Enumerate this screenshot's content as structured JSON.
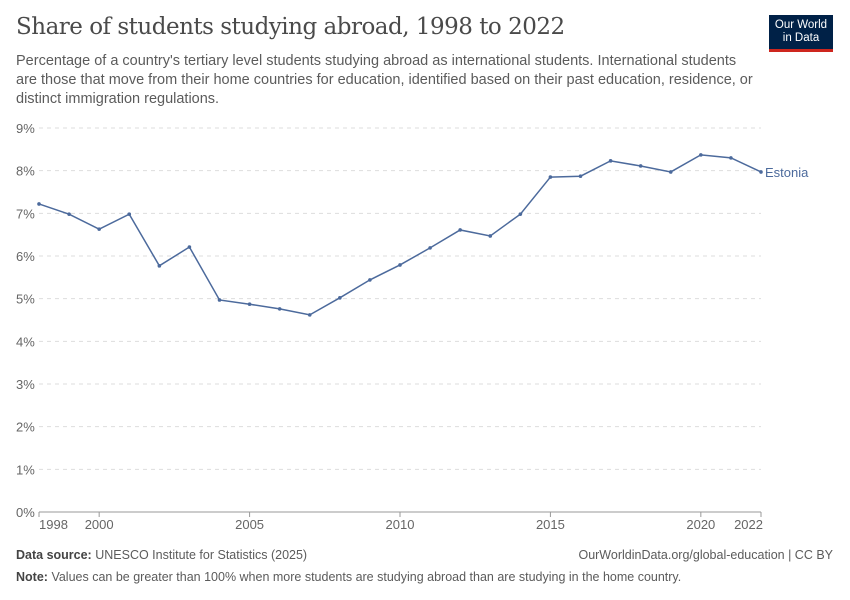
{
  "header": {
    "title": "Share of students studying abroad, 1998 to 2022",
    "subtitle": "Percentage of a country's tertiary level students studying abroad as international students. International students are those that move from their home countries for education, identified based on their past education, residence, or distinct immigration regulations.",
    "logo_text": "Our World in Data"
  },
  "chart_data": {
    "type": "line",
    "title": "Share of students studying abroad, 1998 to 2022",
    "xlim": [
      1998,
      2022
    ],
    "ylim": [
      0,
      9
    ],
    "x_ticks": [
      1998,
      2000,
      2005,
      2010,
      2015,
      2020,
      2022
    ],
    "y_ticks": [
      "0%",
      "1%",
      "2%",
      "3%",
      "4%",
      "5%",
      "6%",
      "7%",
      "8%",
      "9%"
    ],
    "grid": "horizontal dashed",
    "series": [
      {
        "name": "Estonia",
        "color": "#4c6a9c",
        "x": [
          1998,
          1999,
          2000,
          2001,
          2002,
          2003,
          2004,
          2005,
          2006,
          2007,
          2008,
          2009,
          2010,
          2011,
          2012,
          2013,
          2014,
          2015,
          2016,
          2017,
          2018,
          2019,
          2020,
          2021,
          2022
        ],
        "values": [
          7.22,
          6.98,
          6.63,
          6.98,
          5.77,
          6.21,
          4.97,
          4.87,
          4.76,
          4.62,
          5.02,
          5.44,
          5.79,
          6.19,
          6.61,
          6.47,
          6.98,
          7.85,
          7.87,
          8.23,
          8.11,
          7.97,
          8.37,
          8.3,
          7.97
        ]
      }
    ]
  },
  "footer": {
    "source_label": "Data source:",
    "source": "UNESCO Institute for Statistics (2025)",
    "url": "OurWorldinData.org/global-education | CC BY",
    "note_label": "Note:",
    "note": "Values can be greater than 100% when more students are studying abroad than are studying in the home country."
  }
}
